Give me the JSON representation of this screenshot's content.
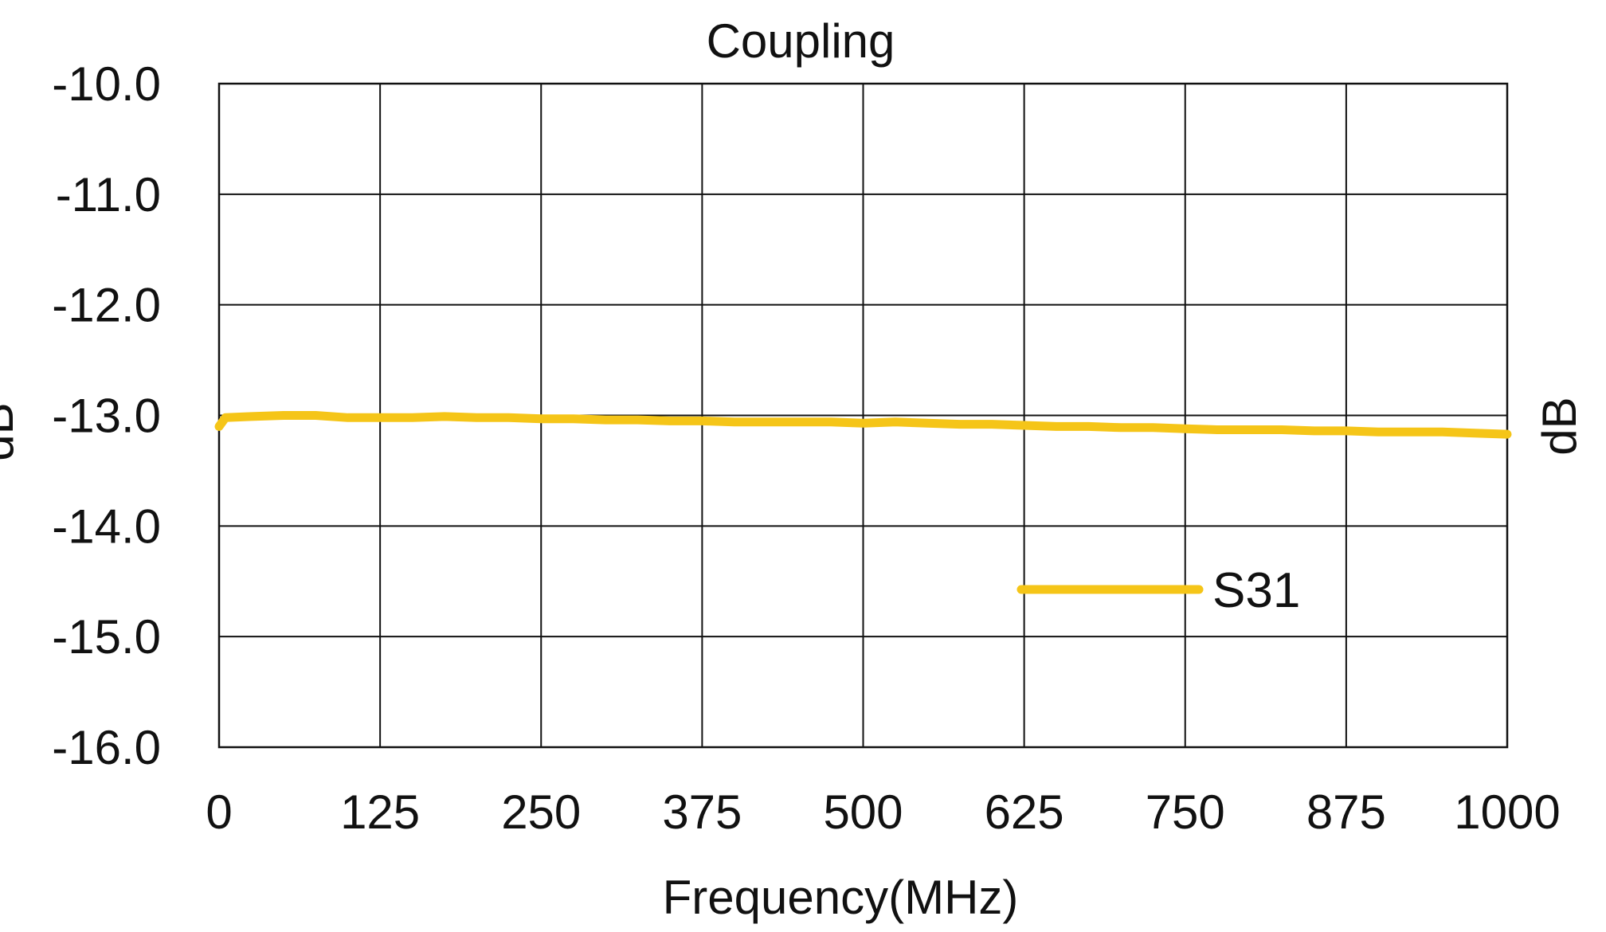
{
  "chart_data": {
    "type": "line",
    "title": "Coupling",
    "xlabel": "Frequency(MHz)",
    "ylabel_left": "dB",
    "ylabel_right": "dB",
    "xlim": [
      0,
      1000
    ],
    "ylim": [
      -16.0,
      -10.0
    ],
    "grid": true,
    "x_ticks": [
      "0",
      "125",
      "250",
      "375",
      "500",
      "625",
      "750",
      "875",
      "1000"
    ],
    "x_tick_values": [
      0,
      125,
      250,
      375,
      500,
      625,
      750,
      875,
      1000
    ],
    "y_ticks": [
      "-10.0",
      "-11.0",
      "-12.0",
      "-13.0",
      "-14.0",
      "-15.0",
      "-16.0"
    ],
    "y_tick_values": [
      -10,
      -11,
      -12,
      -13,
      -14,
      -15,
      -16
    ],
    "legend_position": "lower-right",
    "series": [
      {
        "name": "S31",
        "color": "#F5C518",
        "x": [
          0,
          5,
          25,
          50,
          75,
          100,
          125,
          150,
          175,
          200,
          225,
          250,
          275,
          300,
          325,
          350,
          375,
          400,
          425,
          450,
          475,
          500,
          525,
          550,
          575,
          600,
          625,
          650,
          675,
          700,
          725,
          750,
          775,
          800,
          825,
          850,
          875,
          900,
          925,
          950,
          975,
          1000
        ],
        "y": [
          -13.1,
          -13.02,
          -13.01,
          -13.0,
          -13.0,
          -13.02,
          -13.02,
          -13.02,
          -13.01,
          -13.02,
          -13.02,
          -13.03,
          -13.03,
          -13.04,
          -13.04,
          -13.05,
          -13.05,
          -13.06,
          -13.06,
          -13.06,
          -13.06,
          -13.07,
          -13.06,
          -13.07,
          -13.08,
          -13.08,
          -13.09,
          -13.1,
          -13.1,
          -13.11,
          -13.11,
          -13.12,
          -13.13,
          -13.13,
          -13.13,
          -13.14,
          -13.14,
          -13.15,
          -13.15,
          -13.15,
          -13.16,
          -13.17
        ]
      }
    ]
  }
}
